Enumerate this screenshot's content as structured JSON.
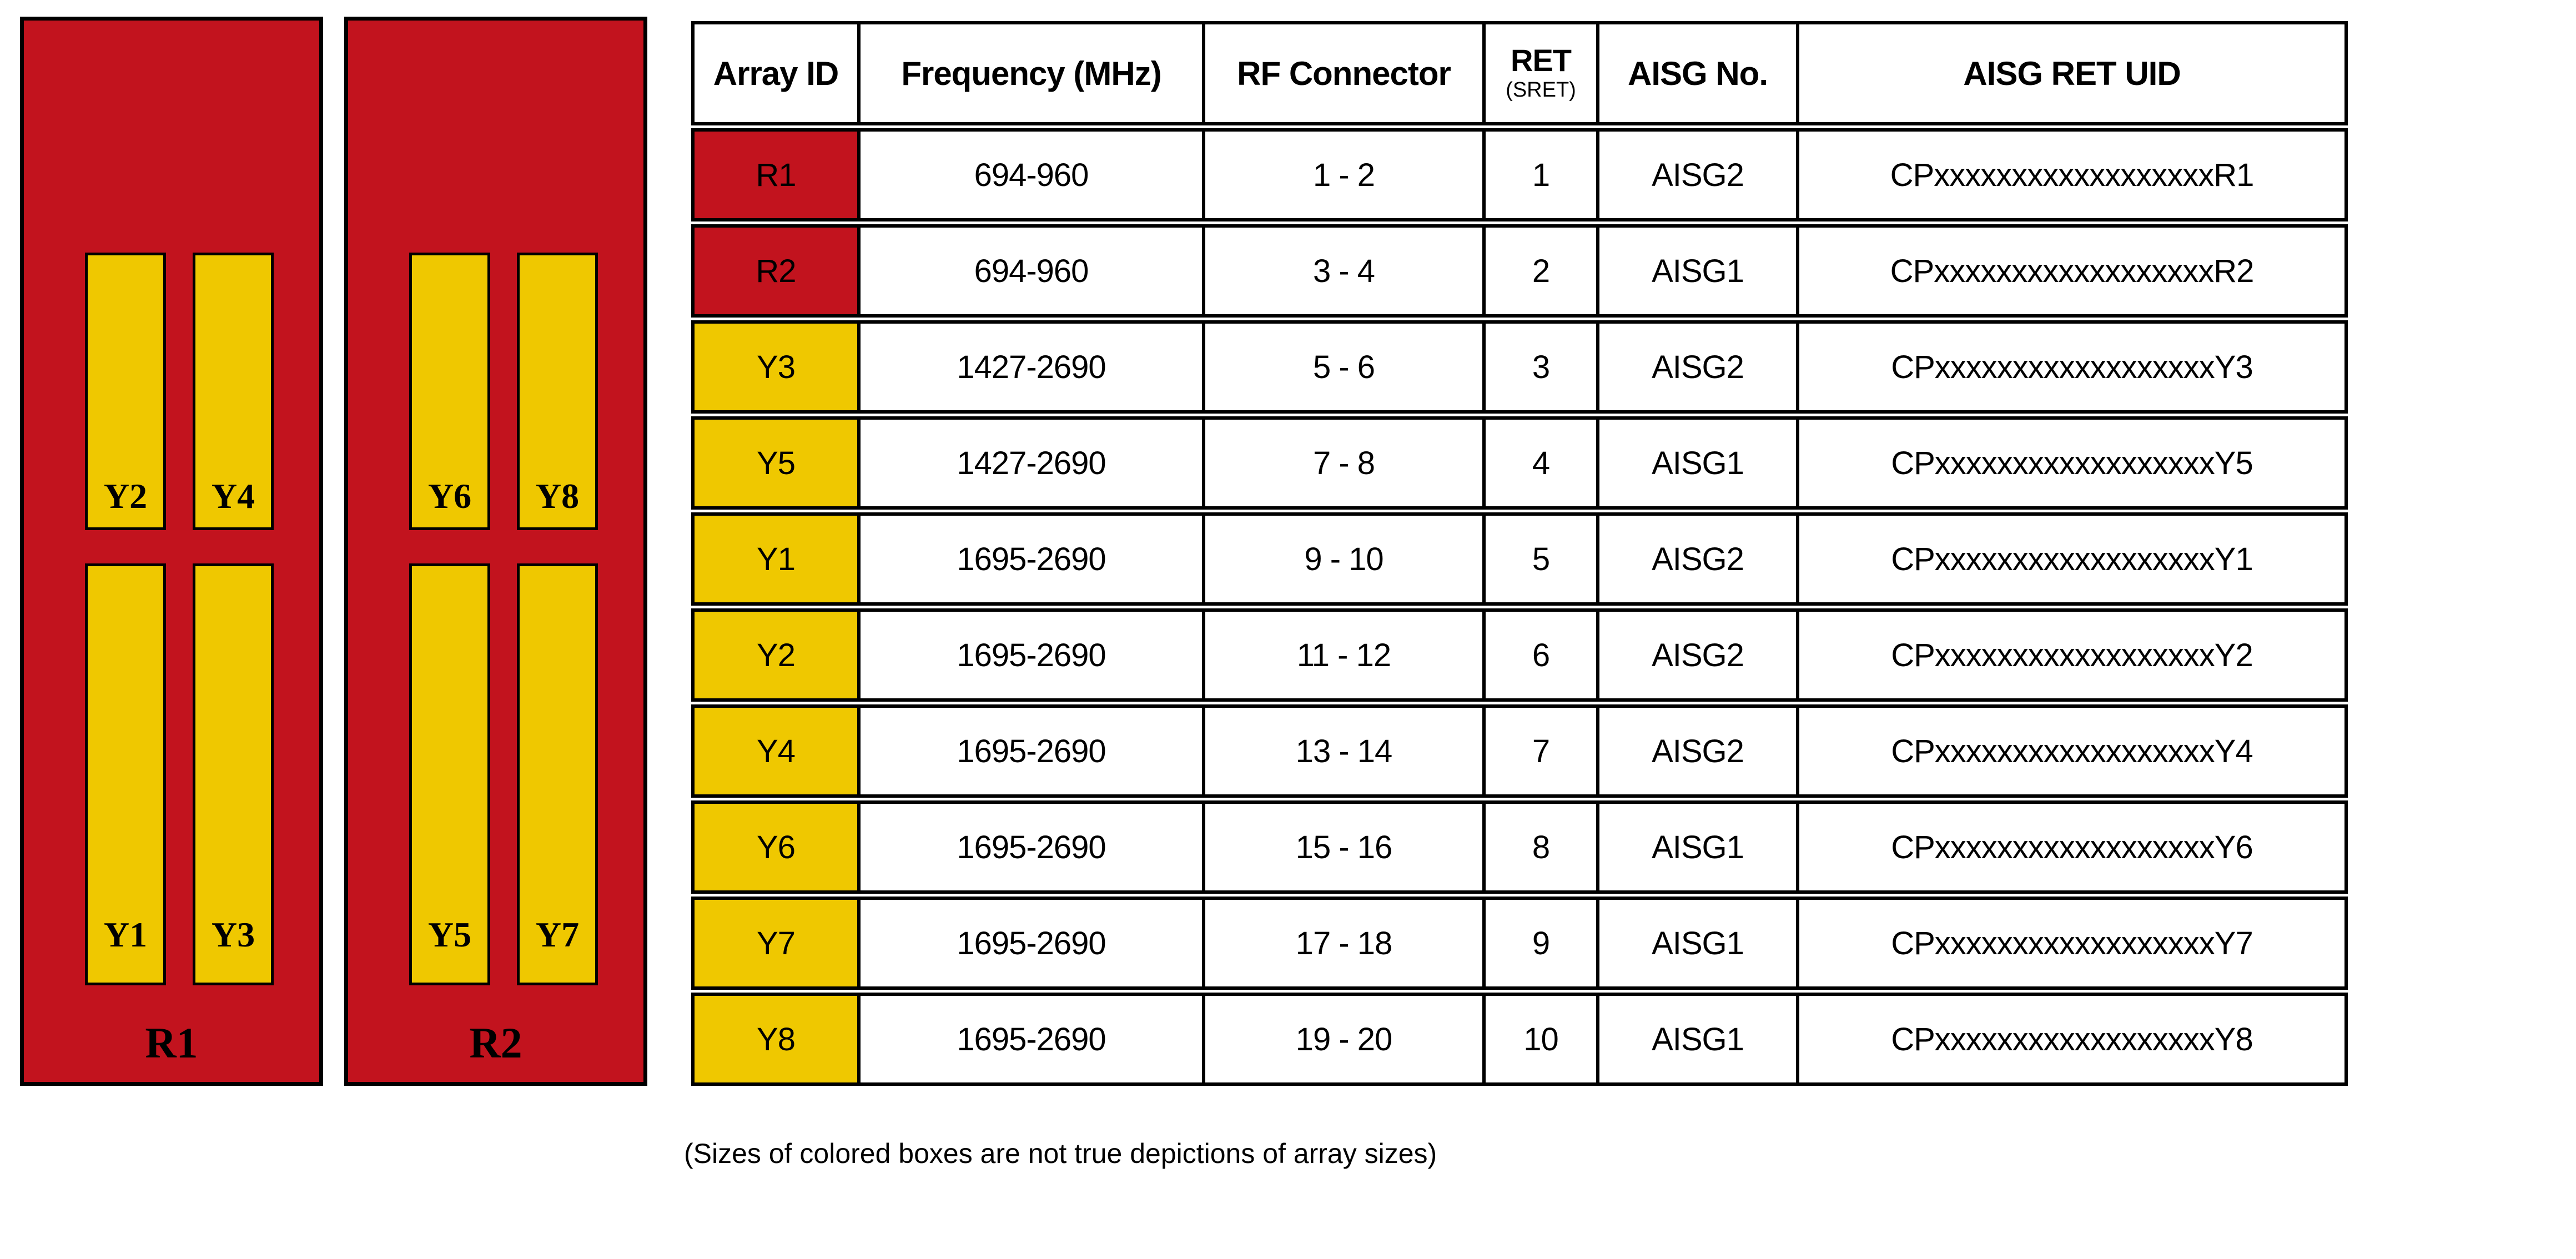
{
  "diagram": {
    "panels": [
      {
        "label": "R1",
        "top_arrays": [
          "Y2",
          "Y4"
        ],
        "bottom_arrays": [
          "Y1",
          "Y3"
        ]
      },
      {
        "label": "R2",
        "top_arrays": [
          "Y6",
          "Y8"
        ],
        "bottom_arrays": [
          "Y5",
          "Y7"
        ]
      }
    ],
    "colors": {
      "panel_red": "#C2131E",
      "array_yellow": "#EFC800",
      "outline": "#000000"
    }
  },
  "table": {
    "headers": {
      "array_id": "Array ID",
      "frequency": "Frequency (MHz)",
      "rf_connector": "RF Connector",
      "ret_main": "RET",
      "ret_sub": "(SRET)",
      "aisg_no": "AISG No.",
      "aisg_ret_uid": "AISG RET UID"
    },
    "rows": [
      {
        "array_id": "R1",
        "id_color": "red",
        "frequency": "694-960",
        "rf_connector": "1 - 2",
        "ret": "1",
        "aisg_no": "AISG2",
        "aisg_ret_uid": "CPxxxxxxxxxxxxxxxxxxR1"
      },
      {
        "array_id": "R2",
        "id_color": "red",
        "frequency": "694-960",
        "rf_connector": "3 - 4",
        "ret": "2",
        "aisg_no": "AISG1",
        "aisg_ret_uid": "CPxxxxxxxxxxxxxxxxxxR2"
      },
      {
        "array_id": "Y3",
        "id_color": "yellow",
        "frequency": "1427-2690",
        "rf_connector": "5 - 6",
        "ret": "3",
        "aisg_no": "AISG2",
        "aisg_ret_uid": "CPxxxxxxxxxxxxxxxxxxY3"
      },
      {
        "array_id": "Y5",
        "id_color": "yellow",
        "frequency": "1427-2690",
        "rf_connector": "7 - 8",
        "ret": "4",
        "aisg_no": "AISG1",
        "aisg_ret_uid": "CPxxxxxxxxxxxxxxxxxxY5"
      },
      {
        "array_id": "Y1",
        "id_color": "yellow",
        "frequency": "1695-2690",
        "rf_connector": "9 - 10",
        "ret": "5",
        "aisg_no": "AISG2",
        "aisg_ret_uid": "CPxxxxxxxxxxxxxxxxxxY1"
      },
      {
        "array_id": "Y2",
        "id_color": "yellow",
        "frequency": "1695-2690",
        "rf_connector": "11 - 12",
        "ret": "6",
        "aisg_no": "AISG2",
        "aisg_ret_uid": "CPxxxxxxxxxxxxxxxxxxY2"
      },
      {
        "array_id": "Y4",
        "id_color": "yellow",
        "frequency": "1695-2690",
        "rf_connector": "13 - 14",
        "ret": "7",
        "aisg_no": "AISG2",
        "aisg_ret_uid": "CPxxxxxxxxxxxxxxxxxxY4"
      },
      {
        "array_id": "Y6",
        "id_color": "yellow",
        "frequency": "1695-2690",
        "rf_connector": "15 - 16",
        "ret": "8",
        "aisg_no": "AISG1",
        "aisg_ret_uid": "CPxxxxxxxxxxxxxxxxxxY6"
      },
      {
        "array_id": "Y7",
        "id_color": "yellow",
        "frequency": "1695-2690",
        "rf_connector": "17 - 18",
        "ret": "9",
        "aisg_no": "AISG1",
        "aisg_ret_uid": "CPxxxxxxxxxxxxxxxxxxY7"
      },
      {
        "array_id": "Y8",
        "id_color": "yellow",
        "frequency": "1695-2690",
        "rf_connector": "19 - 20",
        "ret": "10",
        "aisg_no": "AISG1",
        "aisg_ret_uid": "CPxxxxxxxxxxxxxxxxxxY8"
      }
    ]
  },
  "caption": "(Sizes of colored boxes are not true depictions of array sizes)"
}
